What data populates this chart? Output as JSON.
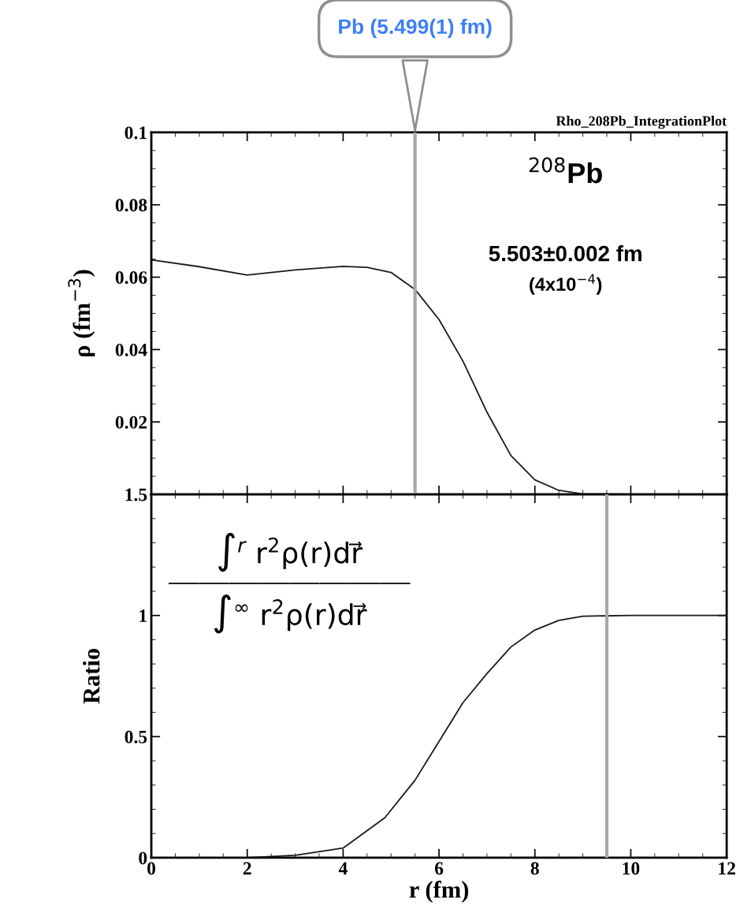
{
  "chart_data": [
    {
      "type": "line",
      "title": "Rho_208Pb_IntegrationPlot",
      "ylabel": "ρ (fm$^{−3}$)",
      "xlim": [
        0,
        12
      ],
      "xticks": [
        0,
        2,
        4,
        6,
        8,
        10,
        12
      ],
      "ylim": [
        0,
        0.1
      ],
      "yticks": [
        {
          "value": 0,
          "label": null
        },
        0.02,
        0.04,
        0.06,
        0.08,
        0.1
      ],
      "tick_labels": "y",
      "marker": "none",
      "line_style": "solid",
      "series": [
        {
          "color": "#1a1a1a",
          "x": [
            0,
            1,
            2,
            3,
            4,
            4.5,
            5,
            5.5,
            6,
            6.5,
            7,
            7.5,
            8,
            8.5,
            9,
            10,
            12
          ],
          "values": [
            0.0648,
            0.0629,
            0.0606,
            0.062,
            0.063,
            0.0627,
            0.0613,
            0.0566,
            0.0483,
            0.0368,
            0.0227,
            0.0107,
            0.004,
            0.0011,
            0.0001,
            0,
            0
          ]
        }
      ],
      "ref_lines": [
        {
          "axis": "x",
          "value": 5.5,
          "label": "Pb (5.499(1) fm)",
          "color": "#a8a8a8"
        }
      ],
      "annotations": [
        "$^{208}$Pb",
        "5.503±0.002 fm",
        "(4x10$^{−4}$)"
      ]
    },
    {
      "type": "line",
      "xlabel": "r (fm)",
      "ylabel": "Ratio",
      "xlim": [
        0,
        12
      ],
      "xticks": [
        0,
        2,
        4,
        6,
        8,
        10,
        12
      ],
      "ylim": [
        0,
        1.5
      ],
      "yticks": [
        0,
        0.5,
        1,
        1.5
      ],
      "marker": "none",
      "line_style": "solid",
      "series": [
        {
          "color": "#1a1a1a",
          "x": [
            0,
            2,
            3,
            4,
            4.87,
            5.5,
            6,
            6.5,
            7,
            7.5,
            8,
            8.5,
            9,
            10,
            12
          ],
          "values": [
            0,
            0,
            0.01,
            0.04,
            0.165,
            0.32,
            0.48,
            0.64,
            0.76,
            0.87,
            0.94,
            0.98,
            0.997,
            1,
            1
          ]
        }
      ],
      "ref_lines": [
        {
          "axis": "x",
          "value": 9.5,
          "color": "#a8a8a8"
        }
      ],
      "annotations": [
        "∫$^{r}$ r$^{2}$ρ(r)dr⃗",
        "∫$^{∞}$ r$^{2}$ρ(r)dr⃗"
      ]
    }
  ]
}
